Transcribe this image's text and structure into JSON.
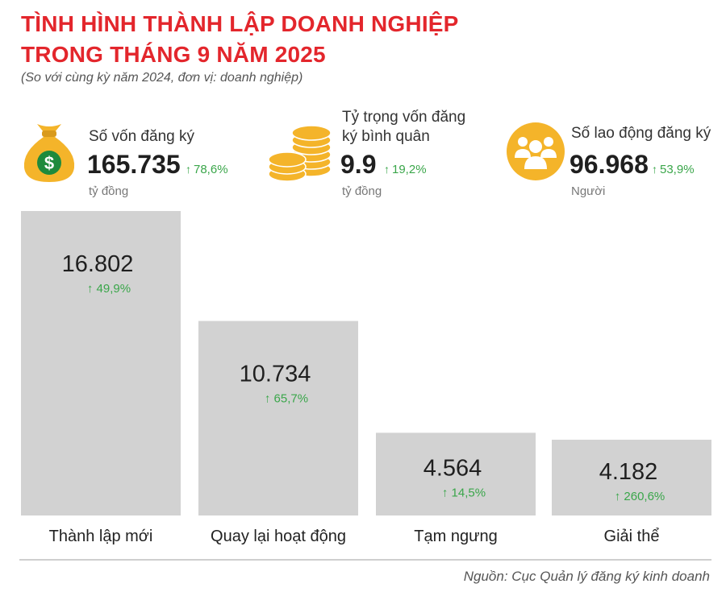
{
  "header": {
    "title_line1": "TÌNH HÌNH THÀNH LẬP DOANH NGHIỆP",
    "title_line2": "TRONG THÁNG 9 NĂM 2025",
    "subtitle": "(So với cùng kỳ năm 2024, đơn vị: doanh nghiệp)"
  },
  "stats": [
    {
      "label": "Số vốn đăng ký",
      "value": "165.735",
      "change": "78,6%",
      "unit": "tỷ đồng",
      "icon": "money-bag-icon"
    },
    {
      "label_line1": "Tỷ trọng vốn đăng",
      "label_line2": "ký bình quân",
      "value": "9.9",
      "change": "19,2%",
      "unit": "tỷ đồng",
      "icon": "coins-icon"
    },
    {
      "label": "Số lao động đăng ký",
      "value": "96.968",
      "change": "53,9%",
      "unit": "Người",
      "icon": "people-icon"
    }
  ],
  "chart_data": {
    "type": "bar",
    "categories": [
      "Thành lập mới",
      "Quay lại hoạt động",
      "Tạm ngưng",
      "Giải thể"
    ],
    "values": [
      16802,
      10734,
      4564,
      4182
    ],
    "value_labels": [
      "16.802",
      "10.734",
      "4.564",
      "4.182"
    ],
    "change_labels": [
      "49,9%",
      "65,7%",
      "14,5%",
      "260,6%"
    ],
    "ylim": [
      0,
      16802
    ],
    "grid": false,
    "bar_color": "#d2d2d2"
  },
  "footer": {
    "source": "Nguồn: Cục Quản lý đăng ký kinh doanh"
  },
  "colors": {
    "title": "#e3262c",
    "increase": "#3aa64a",
    "icon": "#f4b42a"
  },
  "arrow_glyph": "↑"
}
